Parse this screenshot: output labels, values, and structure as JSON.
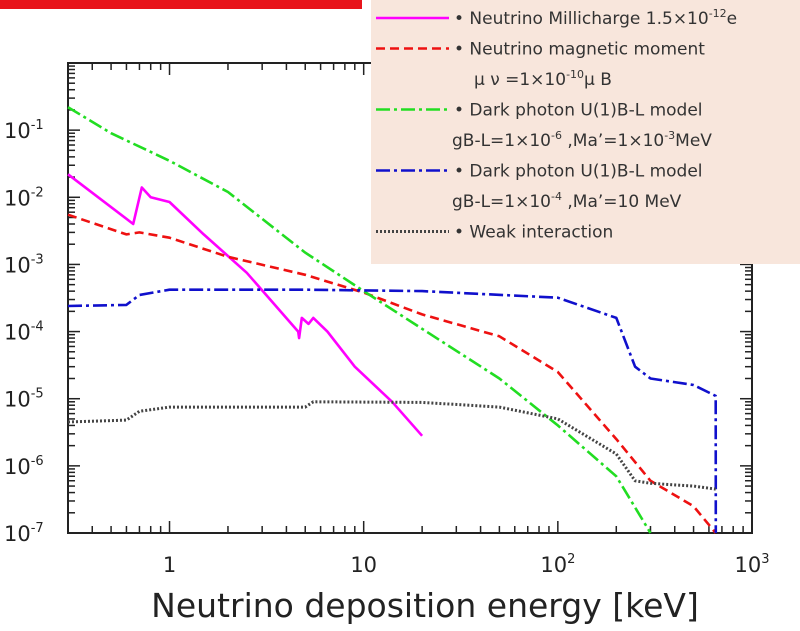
{
  "chart_data": {
    "type": "line",
    "title": "",
    "xlabel": "Neutrino deposition energy [keV]",
    "ylabel": "",
    "xscale": "log",
    "yscale": "log",
    "xlim": [
      0.3,
      1000
    ],
    "ylim": [
      1e-07,
      1
    ],
    "x_ticks": [
      {
        "value": 1,
        "base": "1",
        "exp": ""
      },
      {
        "value": 10,
        "base": "10",
        "exp": ""
      },
      {
        "value": 100,
        "base": "10",
        "exp": "2"
      },
      {
        "value": 1000,
        "base": "10",
        "exp": "3"
      }
    ],
    "y_ticks": [
      {
        "value": 0.1,
        "base": "10",
        "exp": "-1"
      },
      {
        "value": 0.01,
        "base": "10",
        "exp": "-2"
      },
      {
        "value": 0.001,
        "base": "10",
        "exp": "-3"
      },
      {
        "value": 0.0001,
        "base": "10",
        "exp": "-4"
      },
      {
        "value": 1e-05,
        "base": "10",
        "exp": "-5"
      },
      {
        "value": 1e-06,
        "base": "10",
        "exp": "-6"
      },
      {
        "value": 1e-07,
        "base": "10",
        "exp": "-7"
      }
    ],
    "legend_position": "top-right",
    "series": [
      {
        "name": "Neutrino Millicharge 1.5×10-12e",
        "legend_lines": [
          [
            {
              "t": "• Neutrino Millicharge 1.5×10"
            },
            {
              "t": "-12",
              "sup": true
            },
            {
              "t": "e"
            }
          ]
        ],
        "color": "#ff00ff",
        "dash": "",
        "x": [
          0.3,
          0.65,
          0.72,
          0.8,
          1.0,
          1.5,
          2.5,
          4.6,
          4.65,
          4.8,
          5.2,
          5.5,
          6.5,
          9.0,
          14,
          20
        ],
        "y": [
          0.022,
          0.004,
          0.014,
          0.01,
          0.0085,
          0.0028,
          0.00075,
          0.0001,
          8e-05,
          0.00016,
          0.00013,
          0.00016,
          0.0001,
          3e-05,
          9e-06,
          2.8e-06
        ]
      },
      {
        "name": "Neutrino magnetic moment",
        "legend_lines": [
          [
            {
              "t": "• Neutrino magnetic moment"
            }
          ],
          [
            {
              "t": "μ ν =1×10"
            },
            {
              "t": "-10",
              "sup": true
            },
            {
              "t": "μ B"
            }
          ]
        ],
        "color": "#ee1111",
        "dash": "9,5",
        "x": [
          0.3,
          0.6,
          0.7,
          1.0,
          2.0,
          5.0,
          10,
          20,
          50,
          100,
          200,
          300,
          500,
          650
        ],
        "y": [
          0.0055,
          0.0028,
          0.003,
          0.0025,
          0.0013,
          0.0007,
          0.00038,
          0.00018,
          8.5e-05,
          2.5e-05,
          2.5e-06,
          6e-07,
          2.5e-07,
          1e-07
        ]
      },
      {
        "name": "Dark photon U(1)B-L model",
        "legend_lines": [
          [
            {
              "t": "• Dark photon U(1)B-L model"
            }
          ],
          [
            {
              "t": "gB-L=1×10"
            },
            {
              "t": "-6",
              "sup": true
            },
            {
              "t": " ,Ma’=1×10"
            },
            {
              "t": "-3",
              "sup": true
            },
            {
              "t": "MeV"
            }
          ]
        ],
        "color": "#22dd22",
        "dash": "14,4,3,4",
        "x": [
          0.3,
          0.5,
          1.0,
          2.0,
          5.0,
          10,
          20,
          50,
          100,
          200,
          300
        ],
        "y": [
          0.22,
          0.09,
          0.035,
          0.012,
          0.0015,
          0.0004,
          0.00011,
          2e-05,
          4e-06,
          7e-07,
          1e-07
        ]
      },
      {
        "name": "Dark photon U(1)B-L model",
        "legend_lines": [
          [
            {
              "t": "• Dark photon U(1)B-L model"
            }
          ],
          [
            {
              "t": "gB-L=1×10"
            },
            {
              "t": "-4",
              "sup": true
            },
            {
              "t": " ,Ma’=10 MeV"
            }
          ]
        ],
        "color": "#1010cc",
        "dash": "14,4,3,4",
        "x": [
          0.3,
          0.6,
          0.7,
          1.0,
          5.0,
          20,
          100,
          200,
          250,
          300,
          500,
          650,
          651
        ],
        "y": [
          0.00024,
          0.00025,
          0.00035,
          0.00042,
          0.00042,
          0.0004,
          0.00032,
          0.00016,
          3e-05,
          2e-05,
          1.6e-05,
          1.1e-05,
          1e-07
        ]
      },
      {
        "name": "Weak interaction",
        "legend_lines": [
          [
            {
              "t": "• Weak interaction"
            }
          ]
        ],
        "color": "#444444",
        "dash": "2,2",
        "x": [
          0.3,
          0.6,
          0.7,
          1.0,
          5.0,
          5.5,
          20,
          50,
          100,
          200,
          250,
          300,
          500,
          650
        ],
        "y": [
          4.5e-06,
          4.8e-06,
          6.5e-06,
          7.5e-06,
          7.5e-06,
          9e-06,
          8.8e-06,
          7.5e-06,
          5e-06,
          1.5e-06,
          6e-07,
          5.5e-07,
          5e-07,
          4.5e-07
        ]
      }
    ]
  }
}
